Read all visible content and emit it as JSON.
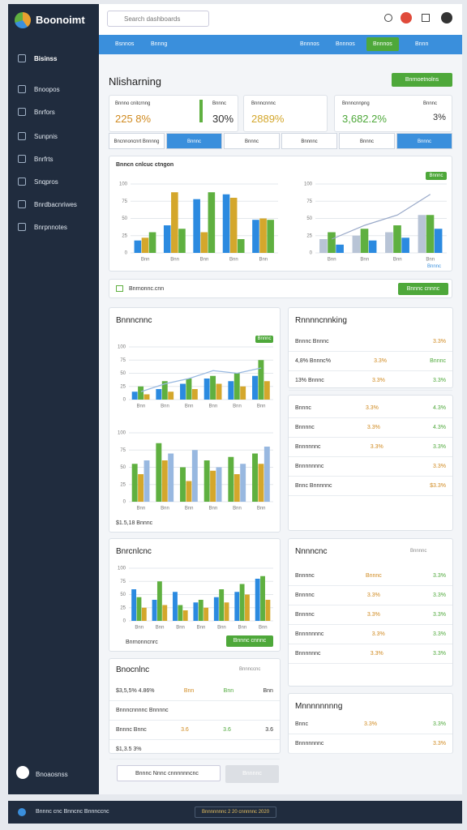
{
  "app": {
    "logo": "Boonoimt",
    "search": "Search dashboards"
  },
  "sidebar": {
    "items": [
      "Bisinss",
      "Bnoopos",
      "Bnrfors",
      "Sunpnis",
      "Bnrfrts",
      "Snqpros",
      "Bnrdbacnriwes",
      "Bnrpnnotes"
    ],
    "footer": "Bnoaosnss"
  },
  "nav": {
    "tabs": [
      "Bsnnos",
      "Bnnng"
    ],
    "right": [
      "Bnnnos",
      "Bnnnos",
      "Bnnnos",
      "Bnnn"
    ]
  },
  "header": {
    "title": "Nlisharning",
    "button": "Bnrnoetnolns"
  },
  "stats": [
    {
      "label": "Bnnno cnitcrnng",
      "value": "225 8%"
    },
    {
      "label": "Bnnnc",
      "value": "30%"
    },
    {
      "label": "Bnnncnnnc",
      "value": "2889%"
    },
    {
      "label": "Bnnncnnpng",
      "value": "3,682.2%"
    },
    {
      "label": "Bnnnc",
      "value": "3%"
    }
  ],
  "tabs": [
    "Bncnnoncnrt Bnnnng",
    "Bnnnc",
    "Bnnnc",
    "Bnnnnc",
    "Bnnnc",
    "Bnnnc"
  ],
  "overview": {
    "title": "Bnncn cnlcuc ctngon",
    "badge": "Bnnnc",
    "link": "Bnnnc"
  },
  "banner": {
    "text": "Bnrnonnc.cnn",
    "button": "Bnnnc cnnnc"
  },
  "left_panels": [
    {
      "title": "Bnnncnnc",
      "badge": "Bnnnc",
      "footer": "$1.5,18 Bnnnc"
    },
    {
      "title": "Bnrcnlcnc",
      "button": "Bnnnc cnnnc",
      "footer": "Bnrnonncnrc"
    },
    {
      "title": "Bnocnlnc",
      "side": "Bnnnccnc",
      "rows": [
        [
          "$3,5,5% 4.86%",
          "Bnn",
          "Bnn",
          "Bnn"
        ],
        [
          "Bnnncnnnnc Bnnnnc"
        ],
        [
          "Bnnnc Bnnc",
          "3.6",
          "3.6",
          "3.6"
        ],
        [
          "$1,3.5 3%"
        ]
      ]
    }
  ],
  "right_panels": [
    {
      "title": "Rnnnncnnking",
      "rows": [
        [
          "Bnnnc Bnnnc",
          "3.3%"
        ],
        [
          "4,8% Bnnnc%",
          "3.3%",
          "Bnnnc"
        ],
        [
          "13% Bnnnc",
          "3.3%",
          "3.3%"
        ]
      ]
    },
    {
      "rows": [
        [
          "Bnnnc",
          "3.3%",
          "4.3%"
        ],
        [
          "Bnnnnc",
          "3.3%",
          "4.3%"
        ],
        [
          "Bnnnnnnc",
          "3.3%",
          "3.3%"
        ],
        [
          "Bnnnnnnnc",
          "3.3%"
        ],
        [
          "Bnnc Bnnnnnc",
          "$3.3%"
        ]
      ]
    },
    {
      "title": "Nnnncnc",
      "side": "Bnnnnc",
      "rows": [
        [
          "Bnnnnc",
          "Bnnnc",
          "3.3%"
        ],
        [
          "Bnnnnc",
          "3.3%",
          "3.3%"
        ],
        [
          "Bnnnnc",
          "3.3%",
          "3.3%"
        ],
        [
          "Bnnnnnnnc",
          "3.3%",
          "3.3%"
        ],
        [
          "Bnnnnnnc",
          "3.3%",
          "3.3%"
        ]
      ]
    },
    {
      "title": "Mnnnnnnnng",
      "rows": [
        [
          "Bnnc",
          "3.3%",
          "3.3%"
        ],
        [
          "Bnnnnnnnc",
          "3.3%"
        ]
      ]
    }
  ],
  "bottom": {
    "select": "Bnnnc Nnnc cnnnnnncnc",
    "button": "Bnnnnc"
  },
  "footer": {
    "left": "Bnnnc cnc Bnncnc Bnnnccnc",
    "center": "Bnnnnnnnc 2 20 cnnnnnc 2020"
  },
  "charts": [
    {
      "type": "bar",
      "ylim": [
        0,
        100
      ],
      "yticks": [
        0,
        25,
        50,
        75,
        100
      ],
      "categories": [
        "Bnn",
        "Bnn",
        "Bnn",
        "Bnn",
        "Bnn"
      ],
      "series": [
        {
          "color": "#2b8ae0",
          "values": [
            18,
            40,
            78,
            85,
            48
          ]
        },
        {
          "color": "#d4a72c",
          "values": [
            22,
            88,
            30,
            80,
            50
          ]
        },
        {
          "color": "#5fb040",
          "values": [
            30,
            35,
            88,
            20,
            48
          ]
        }
      ]
    },
    {
      "type": "bar",
      "ylim": [
        0,
        100
      ],
      "yticks": [
        0,
        25,
        50,
        75,
        100
      ],
      "categories": [
        "Bnn",
        "Bnn",
        "Bnn",
        "Bnn"
      ],
      "series": [
        {
          "color": "#b8c4d6",
          "values": [
            20,
            25,
            30,
            55
          ]
        },
        {
          "color": "#5fb040",
          "values": [
            30,
            35,
            40,
            55
          ]
        },
        {
          "color": "#2b8ae0",
          "values": [
            12,
            18,
            22,
            35
          ]
        },
        {
          "color": "#98a8c8",
          "type": "line",
          "values": [
            20,
            40,
            55,
            85
          ]
        }
      ]
    },
    {
      "type": "bar",
      "ylim": [
        0,
        100
      ],
      "yticks": [
        0,
        25,
        50,
        75,
        100
      ],
      "categories": [
        "Bnn",
        "Bnn",
        "Bnn",
        "Bnn",
        "Bnn",
        "Bnn"
      ],
      "series": [
        {
          "color": "#2b8ae0",
          "values": [
            15,
            20,
            30,
            40,
            35,
            45
          ]
        },
        {
          "color": "#5fb040",
          "values": [
            25,
            35,
            40,
            45,
            50,
            75
          ]
        },
        {
          "color": "#d4a72c",
          "values": [
            10,
            15,
            20,
            30,
            25,
            35
          ]
        },
        {
          "color": "#98b8e0",
          "type": "line",
          "values": [
            15,
            30,
            40,
            55,
            50,
            60
          ]
        }
      ]
    },
    {
      "type": "bar",
      "ylim": [
        0,
        100
      ],
      "yticks": [
        0,
        25,
        50,
        75,
        100
      ],
      "categories": [
        "Bnn",
        "Bnn",
        "Bnn",
        "Bnn",
        "Bnn",
        "Bnn"
      ],
      "series": [
        {
          "color": "#5fb040",
          "values": [
            55,
            85,
            50,
            60,
            65,
            70
          ]
        },
        {
          "color": "#d4a72c",
          "values": [
            40,
            60,
            30,
            45,
            40,
            55
          ]
        },
        {
          "color": "#98b8e0",
          "values": [
            60,
            70,
            75,
            50,
            55,
            80
          ]
        }
      ]
    },
    {
      "type": "bar",
      "ylim": [
        0,
        100
      ],
      "yticks": [
        0,
        25,
        50,
        75,
        100
      ],
      "categories": [
        "Bnn",
        "Bnn",
        "Bnn",
        "Bnn",
        "Bnn",
        "Bnn",
        "Bnn"
      ],
      "series": [
        {
          "color": "#2b8ae0",
          "values": [
            60,
            40,
            55,
            35,
            45,
            55,
            80
          ]
        },
        {
          "color": "#5fb040",
          "values": [
            45,
            75,
            30,
            40,
            60,
            70,
            85
          ]
        },
        {
          "color": "#d4a72c",
          "values": [
            25,
            30,
            20,
            25,
            35,
            50,
            40
          ]
        }
      ]
    }
  ]
}
